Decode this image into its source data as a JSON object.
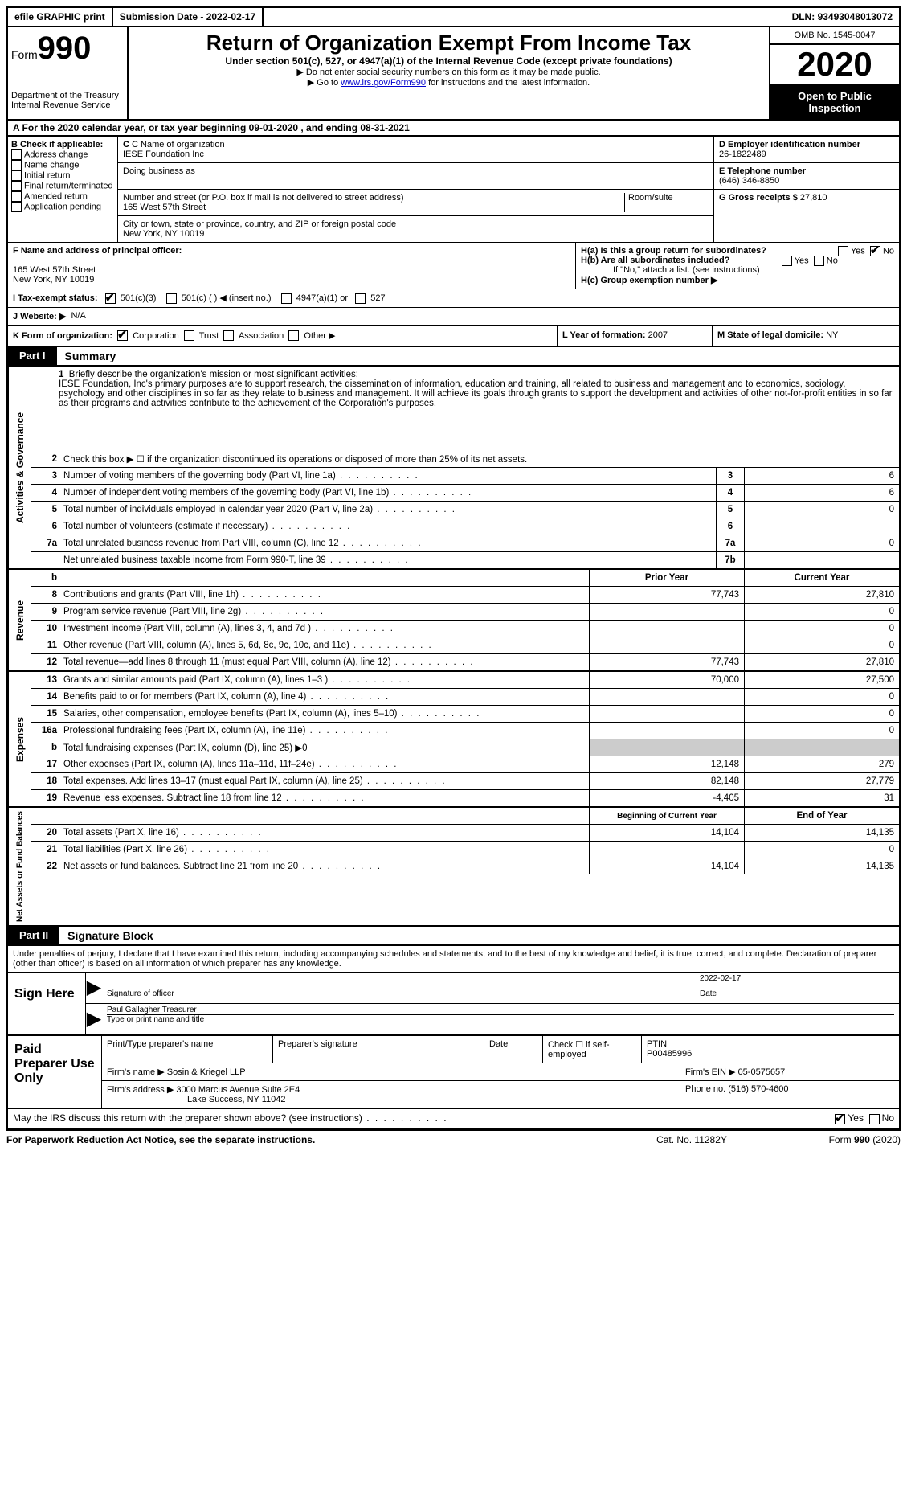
{
  "topbar": {
    "efile": "efile GRAPHIC print",
    "submission": "Submission Date - 2022-02-17",
    "dln_label": "DLN: ",
    "dln": "93493048013072"
  },
  "header": {
    "form_word": "Form",
    "form_num": "990",
    "dept": "Department of the Treasury\nInternal Revenue Service",
    "title": "Return of Organization Exempt From Income Tax",
    "sub": "Under section 501(c), 527, or 4947(a)(1) of the Internal Revenue Code (except private foundations)",
    "note1": "▶ Do not enter social security numbers on this form as it may be made public.",
    "note2_pre": "▶ Go to ",
    "note2_link": "www.irs.gov/Form990",
    "note2_post": " for instructions and the latest information.",
    "omb": "OMB No. 1545-0047",
    "year": "2020",
    "open": "Open to Public Inspection"
  },
  "row_a": "A For the 2020 calendar year, or tax year beginning 09-01-2020   , and ending 08-31-2021",
  "b": {
    "label": "B Check if applicable:",
    "opts": [
      "Address change",
      "Name change",
      "Initial return",
      "Final return/terminated",
      "Amended return",
      "Application pending"
    ]
  },
  "c": {
    "name_label": "C Name of organization",
    "name": "IESE Foundation Inc",
    "dba": "Doing business as",
    "addr_label": "Number and street (or P.O. box if mail is not delivered to street address)",
    "addr": "165 West 57th Street",
    "room": "Room/suite",
    "city_label": "City or town, state or province, country, and ZIP or foreign postal code",
    "city": "New York, NY  10019"
  },
  "d": {
    "label": "D Employer identification number",
    "val": "26-1822489"
  },
  "e": {
    "label": "E Telephone number",
    "val": "(646) 346-8850"
  },
  "g": {
    "label": "G Gross receipts $",
    "val": "27,810"
  },
  "f": {
    "label": "F  Name and address of principal officer:",
    "addr1": "165 West 57th Street",
    "addr2": "New York, NY  10019"
  },
  "h": {
    "a": "H(a)  Is this a group return for subordinates?",
    "b": "H(b)  Are all subordinates included?",
    "bnote": "If \"No,\" attach a list. (see instructions)",
    "c": "H(c)  Group exemption number ▶",
    "yes": "Yes",
    "no": "No"
  },
  "i": {
    "label": "I  Tax-exempt status:",
    "o1": "501(c)(3)",
    "o2": "501(c) (  ) ◀ (insert no.)",
    "o3": "4947(a)(1) or",
    "o4": "527"
  },
  "j": {
    "label": "J  Website: ▶",
    "val": "N/A"
  },
  "k": {
    "label": "K Form of organization:",
    "o1": "Corporation",
    "o2": "Trust",
    "o3": "Association",
    "o4": "Other ▶"
  },
  "l": {
    "label": "L Year of formation:",
    "val": "2007"
  },
  "m": {
    "label": "M State of legal domicile:",
    "val": "NY"
  },
  "parts": {
    "p1": "Part I",
    "p1t": "Summary",
    "p2": "Part II",
    "p2t": "Signature Block"
  },
  "mission_label": "Briefly describe the organization's mission or most significant activities:",
  "mission": "IESE Foundation, Inc's primary purposes are to support research, the dissemination of information, education and training, all related to business and management and to economics, sociology, psychology and other disciplines in so far as they relate to business and management. It will achieve its goals through grants to support the development and activities of other not-for-profit entities in so far as their programs and activities contribute to the achievement of the Corporation's purposes.",
  "line2": "Check this box ▶ ☐ if the organization discontinued its operations or disposed of more than 25% of its net assets.",
  "lines_ag": [
    {
      "n": "3",
      "d": "Number of voting members of the governing body (Part VI, line 1a)",
      "b": "3",
      "v": "6"
    },
    {
      "n": "4",
      "d": "Number of independent voting members of the governing body (Part VI, line 1b)",
      "b": "4",
      "v": "6"
    },
    {
      "n": "5",
      "d": "Total number of individuals employed in calendar year 2020 (Part V, line 2a)",
      "b": "5",
      "v": "0"
    },
    {
      "n": "6",
      "d": "Total number of volunteers (estimate if necessary)",
      "b": "6",
      "v": ""
    },
    {
      "n": "7a",
      "d": "Total unrelated business revenue from Part VIII, column (C), line 12",
      "b": "7a",
      "v": "0"
    },
    {
      "n": "",
      "d": "Net unrelated business taxable income from Form 990-T, line 39",
      "b": "7b",
      "v": ""
    }
  ],
  "col_hdr": {
    "b": "b",
    "py": "Prior Year",
    "cy": "Current Year"
  },
  "rev": [
    {
      "n": "8",
      "d": "Contributions and grants (Part VIII, line 1h)",
      "p": "77,743",
      "c": "27,810"
    },
    {
      "n": "9",
      "d": "Program service revenue (Part VIII, line 2g)",
      "p": "",
      "c": "0"
    },
    {
      "n": "10",
      "d": "Investment income (Part VIII, column (A), lines 3, 4, and 7d )",
      "p": "",
      "c": "0"
    },
    {
      "n": "11",
      "d": "Other revenue (Part VIII, column (A), lines 5, 6d, 8c, 9c, 10c, and 11e)",
      "p": "",
      "c": "0"
    },
    {
      "n": "12",
      "d": "Total revenue—add lines 8 through 11 (must equal Part VIII, column (A), line 12)",
      "p": "77,743",
      "c": "27,810"
    }
  ],
  "exp": [
    {
      "n": "13",
      "d": "Grants and similar amounts paid (Part IX, column (A), lines 1–3 )",
      "p": "70,000",
      "c": "27,500"
    },
    {
      "n": "14",
      "d": "Benefits paid to or for members (Part IX, column (A), line 4)",
      "p": "",
      "c": "0"
    },
    {
      "n": "15",
      "d": "Salaries, other compensation, employee benefits (Part IX, column (A), lines 5–10)",
      "p": "",
      "c": "0"
    },
    {
      "n": "16a",
      "d": "Professional fundraising fees (Part IX, column (A), line 11e)",
      "p": "",
      "c": "0"
    },
    {
      "n": "b",
      "d": "Total fundraising expenses (Part IX, column (D), line 25) ▶0",
      "p": "GREY",
      "c": "GREY"
    },
    {
      "n": "17",
      "d": "Other expenses (Part IX, column (A), lines 11a–11d, 11f–24e)",
      "p": "12,148",
      "c": "279"
    },
    {
      "n": "18",
      "d": "Total expenses. Add lines 13–17 (must equal Part IX, column (A), line 25)",
      "p": "82,148",
      "c": "27,779"
    },
    {
      "n": "19",
      "d": "Revenue less expenses. Subtract line 18 from line 12",
      "p": "-4,405",
      "c": "31"
    }
  ],
  "na_hdr": {
    "b": "Beginning of Current Year",
    "e": "End of Year"
  },
  "na": [
    {
      "n": "20",
      "d": "Total assets (Part X, line 16)",
      "p": "14,104",
      "c": "14,135"
    },
    {
      "n": "21",
      "d": "Total liabilities (Part X, line 26)",
      "p": "",
      "c": "0"
    },
    {
      "n": "22",
      "d": "Net assets or fund balances. Subtract line 21 from line 20",
      "p": "14,104",
      "c": "14,135"
    }
  ],
  "sections": {
    "ag": "Activities & Governance",
    "rev": "Revenue",
    "exp": "Expenses",
    "na": "Net Assets or Fund Balances"
  },
  "sig_intro": "Under penalties of perjury, I declare that I have examined this return, including accompanying schedules and statements, and to the best of my knowledge and belief, it is true, correct, and complete. Declaration of preparer (other than officer) is based on all information of which preparer has any knowledge.",
  "sign": {
    "here": "Sign Here",
    "sig_label": "Signature of officer",
    "date_label": "Date",
    "date": "2022-02-17",
    "name": "Paul Gallagher  Treasurer",
    "name_label": "Type or print name and title"
  },
  "prep": {
    "title": "Paid Preparer Use Only",
    "r1": {
      "a": "Print/Type preparer's name",
      "b": "Preparer's signature",
      "c": "Date",
      "d": "Check ☐ if self-employed",
      "e_label": "PTIN",
      "e": "P00485996"
    },
    "r2": {
      "a": "Firm's name    ▶ Sosin & Kriegel LLP",
      "b_label": "Firm's EIN ▶",
      "b": "05-0575657"
    },
    "r3": {
      "a": "Firm's address ▶ 3000 Marcus Avenue Suite 2E4",
      "a2": "Lake Success, NY  11042",
      "b_label": "Phone no.",
      "b": "(516) 570-4600"
    }
  },
  "discuss": {
    "q": "May the IRS discuss this return with the preparer shown above? (see instructions)",
    "yes": "Yes",
    "no": "No"
  },
  "footer": {
    "l": "For Paperwork Reduction Act Notice, see the separate instructions.",
    "m": "Cat. No. 11282Y",
    "r": "Form 990 (2020)"
  }
}
